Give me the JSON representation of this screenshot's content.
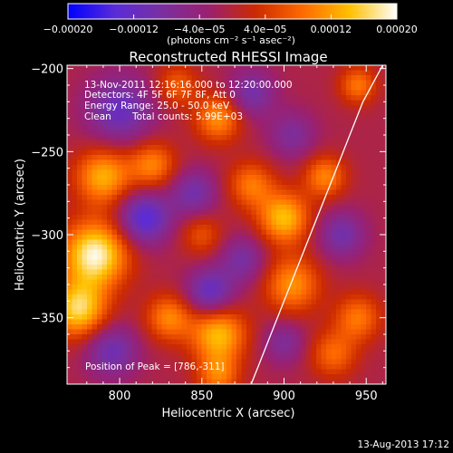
{
  "chart_data": {
    "type": "heatmap",
    "title": "Reconstructed RHESSI Image",
    "xlabel": "Heliocentric X (arcsec)",
    "ylabel": "Heliocentric Y (arcsec)",
    "xlim": [
      768,
      962
    ],
    "ylim": [
      -390,
      -198
    ],
    "x_ticks": [
      800,
      850,
      900,
      950
    ],
    "x_tick_labels": [
      "800",
      "850",
      "900",
      "950"
    ],
    "y_ticks": [
      -200,
      -250,
      -300,
      -350
    ],
    "y_tick_labels": [
      "−200",
      "−250",
      "−300",
      "−350"
    ],
    "colorbar": {
      "range": [
        -0.0002,
        0.0002
      ],
      "ticks": [
        -0.0002,
        -0.00012,
        -4e-05,
        4e-05,
        0.00012,
        0.0002
      ],
      "tick_labels": [
        "−0.00020",
        "−0.00012",
        "−4.0e−05",
        "4.0e−05",
        "0.00012",
        "0.00020"
      ],
      "unit_label": "(photons cm⁻² s⁻¹ asec⁻²)",
      "colors": [
        "#0000ff",
        "#5a2cd8",
        "#7a2fa0",
        "#9a2070",
        "#cc2a00",
        "#ff6a00",
        "#ffc000",
        "#ffffff"
      ]
    },
    "annotations": {
      "time_range": "13-Nov-2011 12:16:16.000 to 12:20:00.000",
      "detectors": "Detectors: 4F 5F 6F 7F 8F, Att 0",
      "energy": "Energy Range: 25.0 - 50.0 keV",
      "clean": "Clean",
      "counts": "Total counts: 5.99E+03",
      "peak": "Position of Peak = [786,-311]"
    },
    "peak_position": [
      786,
      -311
    ],
    "limb_curve": [
      [
        960,
        -198
      ],
      [
        948,
        -220
      ],
      [
        932,
        -260
      ],
      [
        916,
        -300
      ],
      [
        900,
        -340
      ],
      [
        884,
        -380
      ],
      [
        880,
        -390
      ]
    ],
    "blobs": [
      {
        "x": 785,
        "y": -312,
        "sigma": 14,
        "amp": 1.0
      },
      {
        "x": 775,
        "y": -345,
        "sigma": 12,
        "amp": 0.85
      },
      {
        "x": 790,
        "y": -265,
        "sigma": 12,
        "amp": 0.7
      },
      {
        "x": 820,
        "y": -258,
        "sigma": 10,
        "amp": 0.55
      },
      {
        "x": 860,
        "y": -230,
        "sigma": 10,
        "amp": 0.6
      },
      {
        "x": 835,
        "y": -210,
        "sigma": 9,
        "amp": 0.4
      },
      {
        "x": 880,
        "y": -270,
        "sigma": 10,
        "amp": 0.5
      },
      {
        "x": 900,
        "y": -290,
        "sigma": 11,
        "amp": 0.75
      },
      {
        "x": 905,
        "y": -330,
        "sigma": 12,
        "amp": 0.6
      },
      {
        "x": 925,
        "y": -265,
        "sigma": 9,
        "amp": 0.55
      },
      {
        "x": 945,
        "y": -210,
        "sigma": 8,
        "amp": 0.5
      },
      {
        "x": 945,
        "y": -350,
        "sigma": 10,
        "amp": 0.5
      },
      {
        "x": 930,
        "y": -372,
        "sigma": 10,
        "amp": 0.45
      },
      {
        "x": 860,
        "y": -360,
        "sigma": 12,
        "amp": 0.75
      },
      {
        "x": 830,
        "y": -350,
        "sigma": 10,
        "amp": 0.55
      },
      {
        "x": 850,
        "y": -300,
        "sigma": 9,
        "amp": 0.35
      },
      {
        "x": 860,
        "y": -385,
        "sigma": 9,
        "amp": 0.5
      },
      {
        "x": 800,
        "y": -225,
        "sigma": 14,
        "amp": -0.55
      },
      {
        "x": 815,
        "y": -290,
        "sigma": 11,
        "amp": -0.7
      },
      {
        "x": 845,
        "y": -275,
        "sigma": 10,
        "amp": -0.45
      },
      {
        "x": 855,
        "y": -335,
        "sigma": 10,
        "amp": -0.6
      },
      {
        "x": 875,
        "y": -315,
        "sigma": 10,
        "amp": -0.4
      },
      {
        "x": 880,
        "y": -215,
        "sigma": 10,
        "amp": -0.45
      },
      {
        "x": 905,
        "y": -240,
        "sigma": 10,
        "amp": -0.35
      },
      {
        "x": 935,
        "y": -300,
        "sigma": 10,
        "amp": -0.45
      },
      {
        "x": 795,
        "y": -370,
        "sigma": 11,
        "amp": -0.5
      },
      {
        "x": 900,
        "y": -365,
        "sigma": 9,
        "amp": -0.35
      }
    ]
  },
  "footer": {
    "timestamp": "13-Aug-2013 17:12"
  }
}
